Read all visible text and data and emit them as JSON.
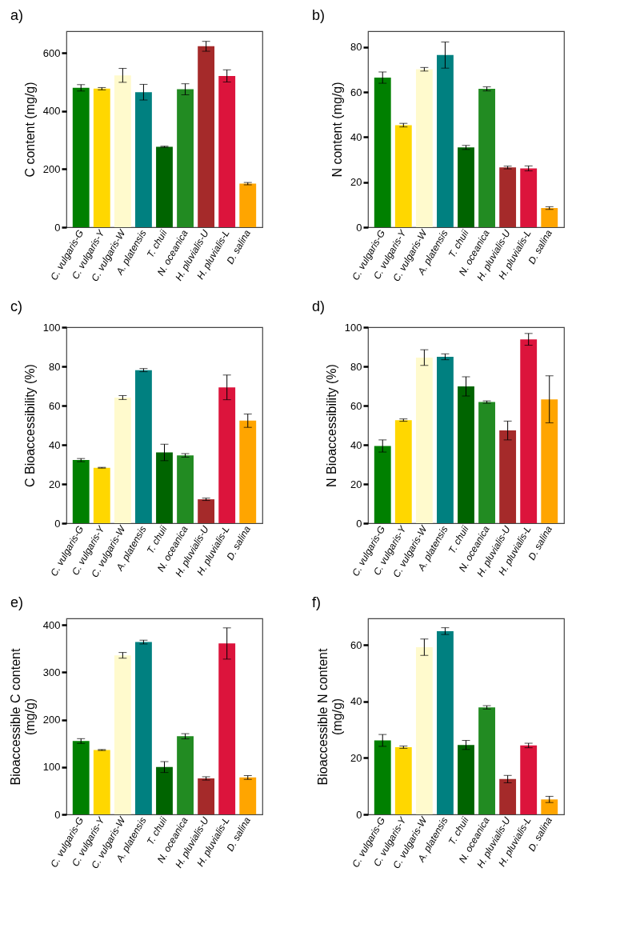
{
  "chart_data": [
    {
      "type": "bar",
      "title": "a)",
      "ylabel": "C content (mg/g)",
      "categories": [
        "C. vulgaris-G",
        "C. vulgaris-Y",
        "C. vulgaris-W",
        "A. platensis",
        "T. chuii",
        "N. oceanica",
        "H. pluvialis-U",
        "H. pluvialis-L",
        "D. salina"
      ],
      "values": [
        480,
        477,
        523,
        465,
        277,
        475,
        623,
        521,
        150
      ],
      "errors": [
        11,
        4,
        24,
        27,
        2,
        19,
        17,
        21,
        4
      ],
      "colors": [
        "#008000",
        "#ffd700",
        "#fffacd",
        "#008080",
        "#006400",
        "#228b22",
        "#a52a2a",
        "#dc143c",
        "#ffa500"
      ],
      "ylim": [
        0,
        675
      ],
      "yticks": [
        0,
        200,
        400,
        600
      ]
    },
    {
      "type": "bar",
      "title": "b)",
      "ylabel": "N content (mg/g)",
      "categories": [
        "C. vulgaris-G",
        "C. vulgaris-Y",
        "C. vulgaris-W",
        "A. platensis",
        "T. chuii",
        "N. oceanica",
        "H. pluvialis-U",
        "H. pluvialis-L",
        "D. salina"
      ],
      "values": [
        66.4,
        45.3,
        70.1,
        76.4,
        35.4,
        61.4,
        26.5,
        26.1,
        8.5
      ],
      "errors": [
        2.5,
        0.8,
        0.8,
        5.8,
        0.9,
        0.9,
        0.6,
        1.1,
        0.6
      ],
      "colors": [
        "#008000",
        "#ffd700",
        "#fffacd",
        "#008080",
        "#006400",
        "#228b22",
        "#a52a2a",
        "#dc143c",
        "#ffa500"
      ],
      "ylim": [
        0,
        87
      ],
      "yticks": [
        0,
        20,
        40,
        60,
        80
      ]
    },
    {
      "type": "bar",
      "title": "c)",
      "ylabel": "C Bioaccessibility (%)",
      "categories": [
        "C. vulgaris-G",
        "C. vulgaris-Y",
        "C. vulgaris-W",
        "A. platensis",
        "T. chuii",
        "N. oceanica",
        "H. pluvialis-U",
        "H. pluvialis-L",
        "D. salina"
      ],
      "values": [
        32.2,
        28.3,
        64.1,
        78.1,
        36.1,
        34.6,
        12.2,
        69.3,
        52.3
      ],
      "errors": [
        0.8,
        0.2,
        1.0,
        0.8,
        4.2,
        0.9,
        0.6,
        6.3,
        3.4
      ],
      "colors": [
        "#008000",
        "#ffd700",
        "#fffacd",
        "#008080",
        "#006400",
        "#228b22",
        "#a52a2a",
        "#dc143c",
        "#ffa500"
      ],
      "ylim": [
        0,
        100
      ],
      "yticks": [
        0,
        20,
        40,
        60,
        80,
        100
      ]
    },
    {
      "type": "bar",
      "title": "d)",
      "ylabel": "N Bioaccessibility (%)",
      "categories": [
        "C. vulgaris-G",
        "C. vulgaris-Y",
        "C. vulgaris-W",
        "A. platensis",
        "T. chuii",
        "N. oceanica",
        "H. pluvialis-U",
        "H. pluvialis-L",
        "D. salina"
      ],
      "values": [
        39.4,
        52.6,
        84.5,
        84.9,
        69.8,
        61.8,
        47.3,
        93.8,
        63.2
      ],
      "errors": [
        3.1,
        0.6,
        4.0,
        1.5,
        4.9,
        0.6,
        4.8,
        3.0,
        12
      ],
      "colors": [
        "#008000",
        "#ffd700",
        "#fffacd",
        "#008080",
        "#006400",
        "#228b22",
        "#a52a2a",
        "#dc143c",
        "#ffa500"
      ],
      "ylim": [
        0,
        100
      ],
      "yticks": [
        0,
        20,
        40,
        60,
        80,
        100
      ]
    },
    {
      "type": "bar",
      "title": "e)",
      "ylabel": "Bioaccessible C content\n(mg/g)",
      "categories": [
        "C. vulgaris-G",
        "C. vulgaris-Y",
        "C. vulgaris-W",
        "A. platensis",
        "T. chuii",
        "N. oceanica",
        "H. pluvialis-U",
        "H. pluvialis-L",
        "D. salina"
      ],
      "values": [
        155,
        136,
        336,
        364,
        100,
        165,
        76,
        361,
        78
      ],
      "errors": [
        5,
        1,
        6,
        4,
        11.5,
        5.5,
        3.5,
        33,
        4
      ],
      "colors": [
        "#008000",
        "#ffd700",
        "#fffacd",
        "#008080",
        "#006400",
        "#228b22",
        "#a52a2a",
        "#dc143c",
        "#ffa500"
      ],
      "ylim": [
        0,
        414
      ],
      "yticks": [
        0,
        100,
        200,
        300,
        400
      ]
    },
    {
      "type": "bar",
      "title": "f)",
      "ylabel": "Bioaccessible N content\n(mg/g)",
      "categories": [
        "C. vulgaris-G",
        "C. vulgaris-Y",
        "C. vulgaris-W",
        "A. platensis",
        "T. chuii",
        "N. oceanica",
        "H. pluvialis-U",
        "H. pluvialis-L",
        "D. salina"
      ],
      "values": [
        26.2,
        23.8,
        59.2,
        64.9,
        24.6,
        37.9,
        12.5,
        24.4,
        5.3
      ],
      "errors": [
        2.1,
        0.4,
        2.9,
        1.2,
        1.6,
        0.6,
        1.3,
        0.8,
        1.1
      ],
      "colors": [
        "#008000",
        "#ffd700",
        "#fffacd",
        "#008080",
        "#006400",
        "#228b22",
        "#a52a2a",
        "#dc143c",
        "#ffa500"
      ],
      "ylim": [
        0,
        69.4
      ],
      "yticks": [
        0,
        20,
        40,
        60
      ]
    }
  ]
}
